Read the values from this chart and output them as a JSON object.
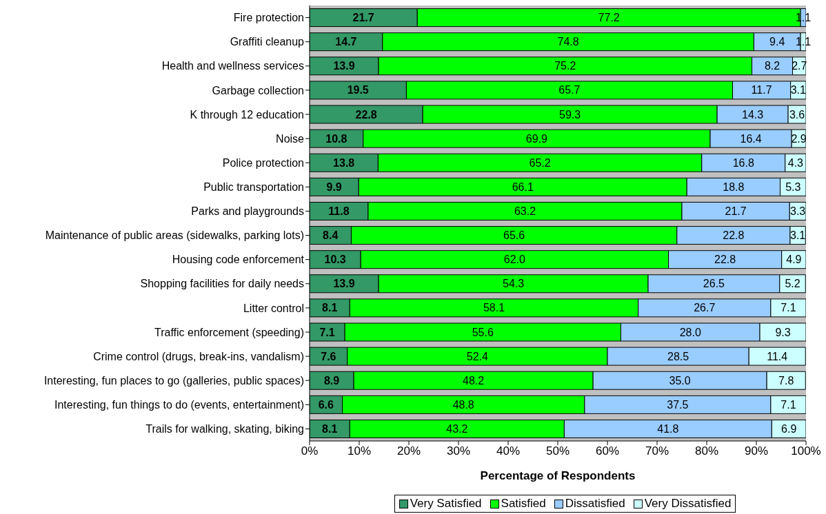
{
  "chart_data": {
    "type": "bar",
    "orientation": "horizontal",
    "stacked": true,
    "xlabel": "Percentage of Respondents",
    "categories": [
      "Fire protection",
      "Graffiti cleanup",
      "Health and wellness services",
      "Garbage collection",
      "K through 12 education",
      "Noise",
      "Police protection",
      "Public transportation",
      "Parks and playgrounds",
      "Maintenance of public areas (sidewalks, parking lots)",
      "Housing code enforcement",
      "Shopping facilities for daily needs",
      "Litter control",
      "Traffic enforcement (speeding)",
      "Crime control (drugs, break-ins, vandalism)",
      "Interesting, fun places to go (galleries, public spaces)",
      "Interesting, fun things to do (events, entertainment)",
      "Trails for walking, skating, biking"
    ],
    "series": [
      {
        "name": "Very Satisfied",
        "color": "#339966",
        "values": [
          21.7,
          14.7,
          13.9,
          19.5,
          22.8,
          10.8,
          13.8,
          9.9,
          11.8,
          8.4,
          10.3,
          13.9,
          8.1,
          7.1,
          7.6,
          8.9,
          6.6,
          8.1
        ],
        "value_labels": [
          "21.7",
          "14.7",
          "13.9",
          "19.5",
          "22.8",
          "10.8",
          "13.8",
          "9.9",
          "11.8",
          "8.4",
          "10.3",
          "13.9",
          "8.1",
          "7.1",
          "7.6",
          "8.9",
          "6.6",
          "8.1"
        ]
      },
      {
        "name": "Satisfied",
        "color": "#00ff00",
        "values": [
          77.2,
          74.8,
          75.2,
          65.7,
          59.3,
          69.9,
          65.2,
          66.1,
          63.2,
          65.6,
          62.0,
          54.3,
          58.1,
          55.6,
          52.4,
          48.2,
          48.8,
          43.2
        ],
        "value_labels": [
          "77.2",
          "74.8",
          "75.2",
          "65.7",
          "59.3",
          "69.9",
          "65.2",
          "66.1",
          "63.2",
          "65.6",
          "62.0",
          "54.3",
          "58.1",
          "55.6",
          "52.4",
          "48.2",
          "48.8",
          "43.2"
        ]
      },
      {
        "name": "Dissatisfied",
        "color": "#99ccff",
        "values": [
          1.1,
          9.4,
          8.2,
          11.7,
          14.3,
          16.4,
          16.8,
          18.8,
          21.7,
          22.8,
          22.8,
          26.5,
          26.7,
          28.0,
          28.5,
          35.0,
          37.5,
          41.8
        ],
        "value_labels": [
          "1.1",
          "9.4",
          "8.2",
          "11.7",
          "14.3",
          "16.4",
          "16.8",
          "18.8",
          "21.7",
          "22.8",
          "22.8",
          "26.5",
          "26.7",
          "28.0",
          "28.5",
          "35.0",
          "37.5",
          "41.8"
        ]
      },
      {
        "name": "Very Dissatisfied",
        "color": "#ccffff",
        "values": [
          null,
          1.1,
          2.7,
          3.1,
          3.6,
          2.9,
          4.3,
          5.3,
          3.3,
          3.1,
          4.9,
          5.2,
          7.1,
          9.3,
          11.4,
          7.8,
          7.1,
          6.9
        ],
        "value_labels": [
          null,
          "1.1",
          "2.7",
          "3.1",
          "3.6",
          "2.9",
          "4.3",
          "5.3",
          "3.3",
          "3.1",
          "4.9",
          "5.2",
          "7.1",
          "9.3",
          "11.4",
          "7.8",
          "7.1",
          "6.9"
        ]
      }
    ],
    "xlim": [
      0,
      100
    ],
    "xticks": [
      {
        "value": 0,
        "label": "0%"
      },
      {
        "value": 10,
        "label": "10%"
      },
      {
        "value": 20,
        "label": "20%"
      },
      {
        "value": 30,
        "label": "30%"
      },
      {
        "value": 40,
        "label": "40%"
      },
      {
        "value": 50,
        "label": "50%"
      },
      {
        "value": 60,
        "label": "60%"
      },
      {
        "value": 70,
        "label": "70%"
      },
      {
        "value": 80,
        "label": "80%"
      },
      {
        "value": 90,
        "label": "90%"
      },
      {
        "value": 100,
        "label": "100%"
      }
    ],
    "legend": "bottom"
  }
}
